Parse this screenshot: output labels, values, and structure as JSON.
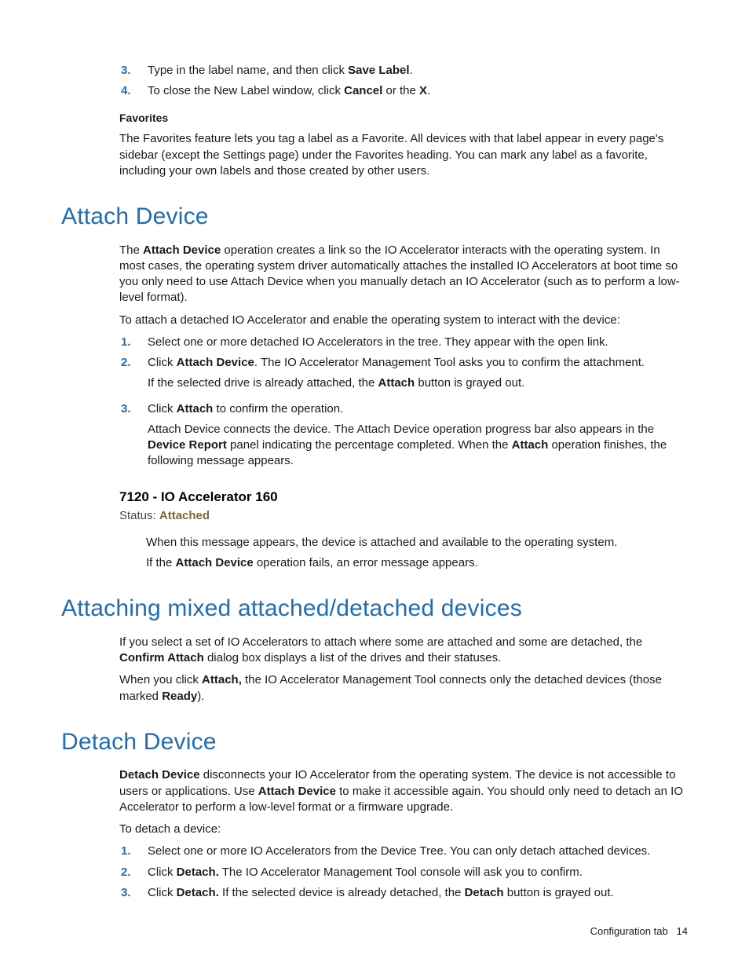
{
  "top_list": [
    {
      "n": "3.",
      "parts": [
        "Type in the label name, and then click ",
        {
          "b": "Save Label"
        },
        "."
      ]
    },
    {
      "n": "4.",
      "parts": [
        "To close the New Label window, click ",
        {
          "b": "Cancel"
        },
        " or the ",
        {
          "b": "X"
        },
        "."
      ]
    }
  ],
  "favorites_heading": "Favorites",
  "favorites_para": "The Favorites feature lets you tag a label as a Favorite. All devices with that label appear in every page's sidebar (except the Settings page) under the Favorites heading. You can mark any label as a favorite, including your own labels and those created by other users.",
  "attach_heading": "Attach Device",
  "attach_intro_parts": [
    "The ",
    {
      "b": "Attach Device"
    },
    " operation creates a link so the IO Accelerator interacts with the operating system. In most cases, the operating system driver automatically attaches the installed IO Accelerators at boot time so you only need to use Attach Device when you manually detach an IO Accelerator (such as to perform a low-level format)."
  ],
  "attach_lead": "To attach a detached IO Accelerator and enable the operating system to interact with the device:",
  "attach_steps": [
    {
      "n": "1.",
      "lines": [
        [
          "Select one or more detached IO Accelerators in the tree. They appear with the open link."
        ]
      ]
    },
    {
      "n": "2.",
      "lines": [
        [
          "Click ",
          {
            "b": "Attach Device"
          },
          ". The IO Accelerator Management Tool asks you to confirm the attachment."
        ],
        [
          "If the selected drive is already attached, the ",
          {
            "b": "Attach"
          },
          " button is grayed out."
        ]
      ]
    },
    {
      "n": "3.",
      "lines": [
        [
          "Click ",
          {
            "b": "Attach"
          },
          " to confirm the operation."
        ],
        [
          "Attach Device connects the device. The Attach Device operation progress bar also appears in the ",
          {
            "b": "Device Report"
          },
          " panel indicating the percentage completed. When the ",
          {
            "b": "Attach"
          },
          " operation finishes, the following message appears."
        ]
      ]
    }
  ],
  "status_title": "7120 - IO Accelerator 160",
  "status_label": "Status:",
  "status_value": "Attached",
  "attach_after": [
    [
      "When this message appears, the device is attached and available to the operating system."
    ],
    [
      "If the ",
      {
        "b": "Attach Device"
      },
      " operation fails, an error message appears."
    ]
  ],
  "mixed_heading": "Attaching mixed attached/detached devices",
  "mixed_p1_parts": [
    "If you select a set of IO Accelerators to attach where some are attached and some are detached, the ",
    {
      "b": "Confirm Attach"
    },
    " dialog box displays a list of the drives and their statuses."
  ],
  "mixed_p2_parts": [
    "When you click ",
    {
      "b": "Attach,"
    },
    " the IO Accelerator Management Tool connects only the detached devices (those marked ",
    {
      "b": "Ready"
    },
    ")."
  ],
  "detach_heading": "Detach Device",
  "detach_intro_parts": [
    {
      "b": "Detach Device"
    },
    " disconnects your IO Accelerator from the operating system. The device is not accessible to users or applications. Use ",
    {
      "b": "Attach Device"
    },
    " to make it accessible again. You should only need to detach an IO Accelerator to perform a low-level format or a firmware upgrade."
  ],
  "detach_lead": "To detach a device:",
  "detach_steps": [
    {
      "n": "1.",
      "lines": [
        [
          "Select one or more IO Accelerators from the Device Tree. You can only detach attached devices."
        ]
      ]
    },
    {
      "n": "2.",
      "lines": [
        [
          "Click ",
          {
            "b": "Detach."
          },
          " The IO Accelerator Management Tool console will ask you to confirm."
        ]
      ]
    },
    {
      "n": "3.",
      "lines": [
        [
          "Click ",
          {
            "b": "Detach."
          },
          " If the selected device is already detached, the ",
          {
            "b": "Detach"
          },
          " button is grayed out."
        ]
      ]
    }
  ],
  "footer_label": "Configuration tab",
  "footer_page": "14"
}
